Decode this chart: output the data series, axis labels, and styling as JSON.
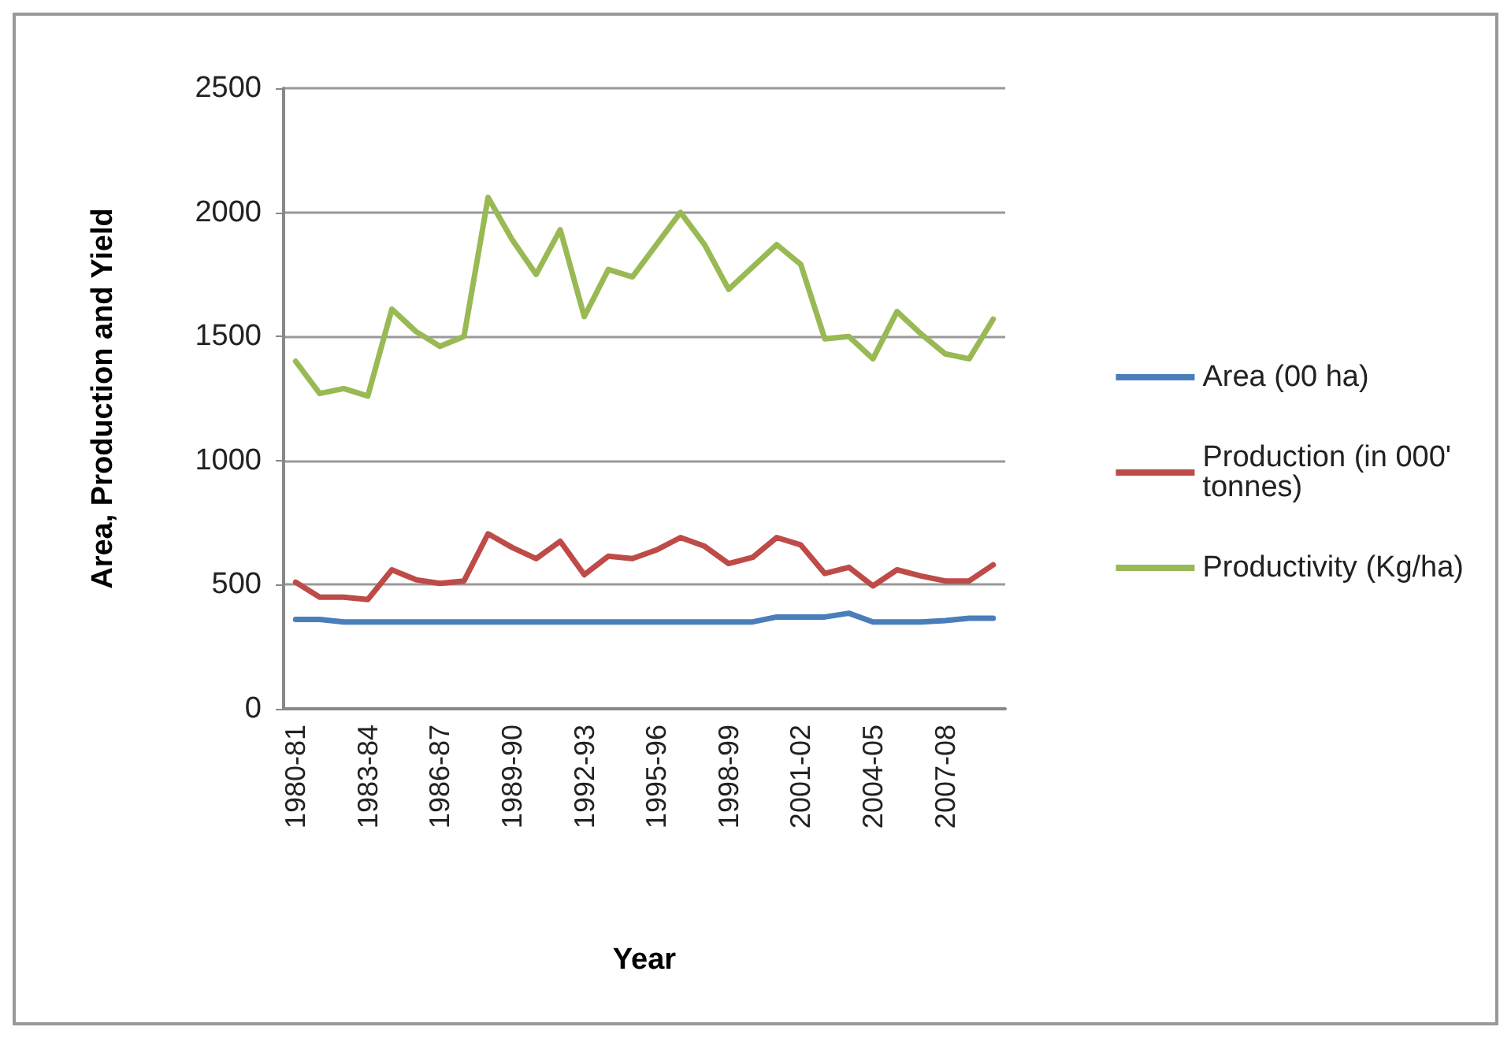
{
  "chart_data": {
    "type": "line",
    "xlabel": "Year",
    "ylabel": "Area, Production and Yield",
    "categories": [
      "1980-81",
      null,
      null,
      "1983-84",
      null,
      null,
      "1986-87",
      null,
      null,
      "1989-90",
      null,
      null,
      "1992-93",
      null,
      null,
      "1995-96",
      null,
      null,
      "1998-99",
      null,
      null,
      "2001-02",
      null,
      null,
      "2004-05",
      null,
      null,
      "2007-08",
      null,
      null
    ],
    "series": [
      {
        "name": "Area (00 ha)",
        "color": "#4a7ebb",
        "values": [
          360,
          360,
          350,
          350,
          350,
          350,
          350,
          350,
          350,
          350,
          350,
          350,
          350,
          350,
          350,
          350,
          350,
          350,
          350,
          350,
          370,
          370,
          370,
          385,
          350,
          350,
          350,
          355,
          365,
          365
        ]
      },
      {
        "name": "Production (in 000' tonnes)",
        "color": "#be4b48",
        "values": [
          510,
          450,
          450,
          440,
          560,
          520,
          505,
          515,
          705,
          650,
          605,
          675,
          540,
          615,
          605,
          640,
          690,
          655,
          585,
          610,
          690,
          660,
          545,
          570,
          495,
          560,
          535,
          515,
          515,
          580
        ]
      },
      {
        "name": "Productivity (Kg/ha)",
        "color": "#98b954",
        "values": [
          1400,
          1270,
          1290,
          1260,
          1610,
          1520,
          1460,
          1500,
          2060,
          1890,
          1750,
          1930,
          1580,
          1770,
          1740,
          1870,
          2000,
          1870,
          1690,
          1780,
          1870,
          1790,
          1490,
          1500,
          1410,
          1600,
          1510,
          1430,
          1410,
          1570
        ]
      }
    ],
    "ylim": [
      0,
      2500
    ],
    "yticks": [
      0,
      500,
      1000,
      1500,
      2000,
      2500
    ],
    "grid": "y",
    "legend": "right",
    "marker": "none",
    "line_style": "solid"
  }
}
